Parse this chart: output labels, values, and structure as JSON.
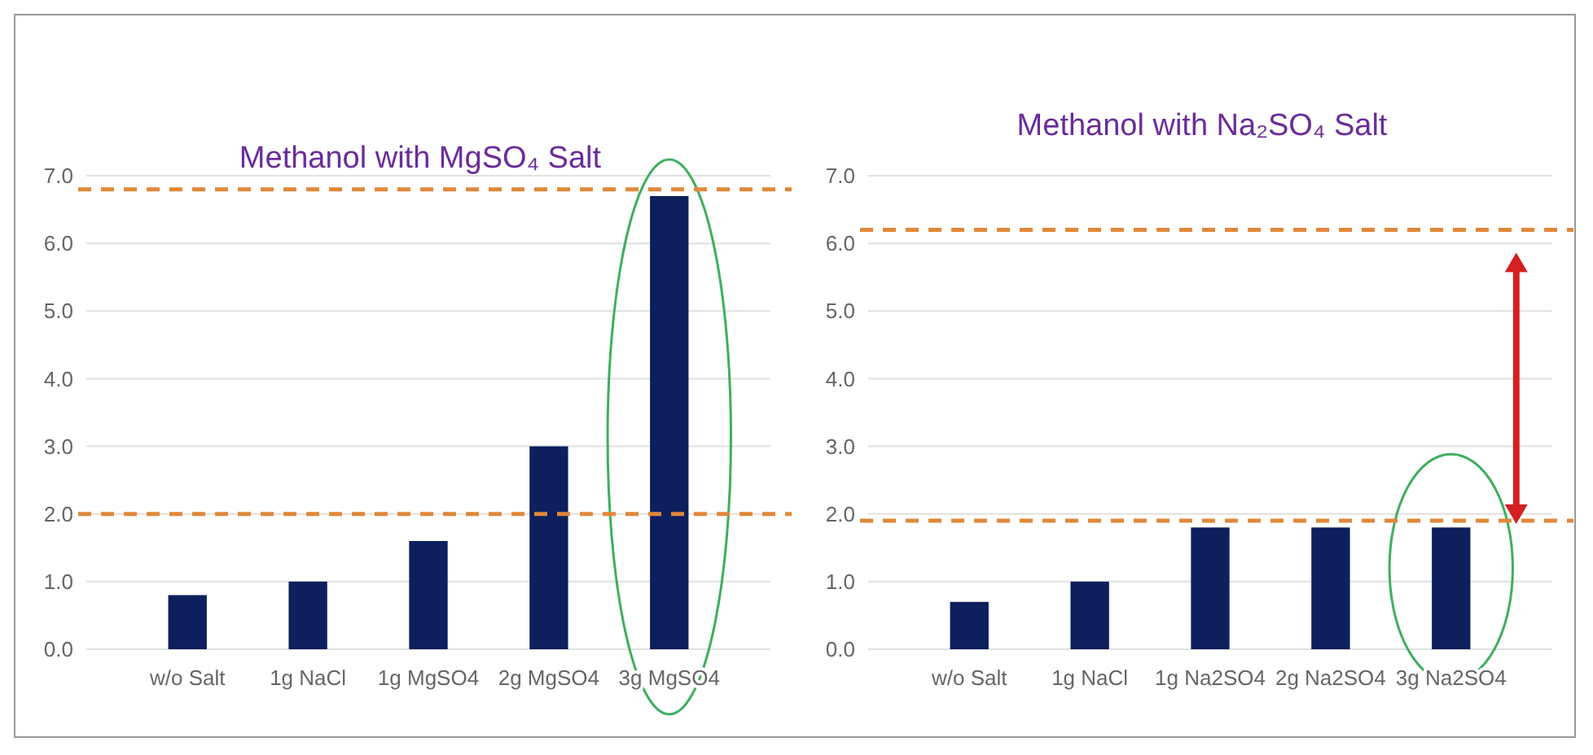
{
  "chart_data": [
    {
      "type": "bar",
      "title": "Methanol with MgSO₄ Salt",
      "categories": [
        "w/o Salt",
        "1g NaCl",
        "1g MgSO4",
        "2g MgSO4",
        "3g MgSO4"
      ],
      "values": [
        0.8,
        1.0,
        1.6,
        3.0,
        6.7
      ],
      "color": "#0d1f5c",
      "ylim": [
        0,
        7
      ],
      "yticks": [
        {
          "value": 0,
          "label": "0.0"
        },
        {
          "value": 1,
          "label": "1.0"
        },
        {
          "value": 2,
          "label": "2.0"
        },
        {
          "value": 3,
          "label": "3.0"
        },
        {
          "value": 4,
          "label": "4.0"
        },
        {
          "value": 5,
          "label": "5.0"
        },
        {
          "value": 6,
          "label": "6.0"
        },
        {
          "value": 7,
          "label": "7.0"
        }
      ],
      "grid": "y",
      "ref_lines": [
        {
          "axis": "y",
          "value": 6.8,
          "color": "#e0883a",
          "line_style": "dashed"
        },
        {
          "axis": "y",
          "value": 2.0,
          "color": "#e0883a",
          "line_style": "dashed"
        }
      ]
    },
    {
      "type": "bar",
      "title": "Methanol with Na₂SO₄ Salt",
      "categories": [
        "w/o Salt",
        "1g NaCl",
        "1g Na2SO4",
        "2g Na2SO4",
        "3g Na2SO4"
      ],
      "values": [
        0.7,
        1.0,
        1.8,
        1.8,
        1.8
      ],
      "color": "#0d1f5c",
      "ylim": [
        0,
        7
      ],
      "yticks": [
        {
          "value": 0,
          "label": "0.0"
        },
        {
          "value": 1,
          "label": "1.0"
        },
        {
          "value": 2,
          "label": "2.0"
        },
        {
          "value": 3,
          "label": "3.0"
        },
        {
          "value": 4,
          "label": "4.0"
        },
        {
          "value": 5,
          "label": "5.0"
        },
        {
          "value": 6,
          "label": "6.0"
        },
        {
          "value": 7,
          "label": "7.0"
        }
      ],
      "grid": "y",
      "ref_lines": [
        {
          "axis": "y",
          "value": 6.2,
          "color": "#e0883a",
          "line_style": "dashed"
        },
        {
          "axis": "y",
          "value": 1.9,
          "color": "#e0883a",
          "line_style": "dashed"
        }
      ]
    }
  ]
}
